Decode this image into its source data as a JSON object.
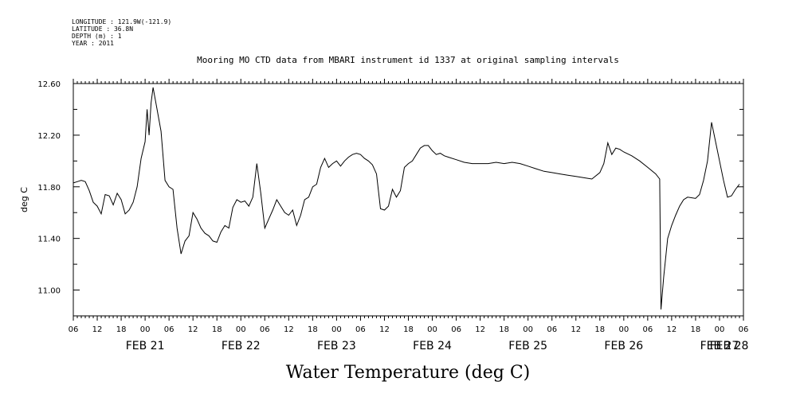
{
  "meta_lines": [
    "LONGITUDE : 121.9W(-121.9)",
    "LATITUDE : 36.8N",
    "DEPTH (m) : 1",
    "YEAR : 2011"
  ],
  "chart_data": {
    "type": "line",
    "title": "Mooring MO CTD data from MBARI instrument id 1337 at original sampling intervals",
    "xlabel": "Water Temperature (deg C)",
    "ylabel": "deg C",
    "xlim": [
      "2011-02-21T06:00",
      "2011-02-28T06:00"
    ],
    "ylim": [
      10.8,
      12.6
    ],
    "yticks": [
      11.0,
      11.4,
      11.8,
      12.2,
      12.6
    ],
    "ytick_labels": [
      "11.00",
      "11.40",
      "11.80",
      "12.20",
      "12.60"
    ],
    "hour_labels": [
      "06",
      "12",
      "18",
      "00",
      "06",
      "12",
      "18",
      "00",
      "06",
      "12",
      "18",
      "00",
      "06",
      "12",
      "18",
      "00",
      "06",
      "12",
      "18",
      "00",
      "06",
      "12",
      "18",
      "00",
      "06",
      "12",
      "18",
      "00",
      "06"
    ],
    "day_labels": [
      "FEB 21",
      "FEB 22",
      "FEB 23",
      "FEB 24",
      "FEB 25",
      "FEB 26",
      "FEB 27",
      "FEB 28"
    ],
    "grid": false,
    "series": [
      {
        "points": [
          [
            "2011-02-21T06:00",
            11.83
          ],
          [
            "2011-02-21T07:00",
            11.84
          ],
          [
            "2011-02-21T08:00",
            11.85
          ],
          [
            "2011-02-21T09:00",
            11.84
          ],
          [
            "2011-02-21T10:00",
            11.77
          ],
          [
            "2011-02-21T11:00",
            11.68
          ],
          [
            "2011-02-21T12:00",
            11.65
          ],
          [
            "2011-02-21T13:00",
            11.59
          ],
          [
            "2011-02-21T14:00",
            11.74
          ],
          [
            "2011-02-21T15:00",
            11.73
          ],
          [
            "2011-02-21T16:00",
            11.66
          ],
          [
            "2011-02-21T17:00",
            11.75
          ],
          [
            "2011-02-21T18:00",
            11.7
          ],
          [
            "2011-02-21T19:00",
            11.59
          ],
          [
            "2011-02-21T20:00",
            11.62
          ],
          [
            "2011-02-21T21:00",
            11.68
          ],
          [
            "2011-02-21T22:00",
            11.8
          ],
          [
            "2011-02-21T23:00",
            12.02
          ],
          [
            "2011-02-22T00:00",
            12.15
          ],
          [
            "2011-02-22T00:30",
            12.4
          ],
          [
            "2011-02-22T01:00",
            12.2
          ],
          [
            "2011-02-22T01:30",
            12.45
          ],
          [
            "2011-02-22T02:00",
            12.57
          ],
          [
            "2011-02-22T03:00",
            12.4
          ],
          [
            "2011-02-22T04:00",
            12.23
          ],
          [
            "2011-02-22T05:00",
            11.85
          ],
          [
            "2011-02-22T06:00",
            11.8
          ],
          [
            "2011-02-22T07:00",
            11.78
          ],
          [
            "2011-02-22T08:00",
            11.48
          ],
          [
            "2011-02-22T09:00",
            11.28
          ],
          [
            "2011-02-22T10:00",
            11.38
          ],
          [
            "2011-02-22T11:00",
            11.42
          ],
          [
            "2011-02-22T12:00",
            11.6
          ],
          [
            "2011-02-22T13:00",
            11.55
          ],
          [
            "2011-02-22T14:00",
            11.48
          ],
          [
            "2011-02-22T15:00",
            11.44
          ],
          [
            "2011-02-22T16:00",
            11.42
          ],
          [
            "2011-02-22T17:00",
            11.38
          ],
          [
            "2011-02-22T18:00",
            11.37
          ],
          [
            "2011-02-22T19:00",
            11.45
          ],
          [
            "2011-02-22T20:00",
            11.5
          ],
          [
            "2011-02-22T21:00",
            11.48
          ],
          [
            "2011-02-22T22:00",
            11.64
          ],
          [
            "2011-02-22T23:00",
            11.7
          ],
          [
            "2011-02-23T00:00",
            11.68
          ],
          [
            "2011-02-23T01:00",
            11.69
          ],
          [
            "2011-02-23T02:00",
            11.65
          ],
          [
            "2011-02-23T03:00",
            11.72
          ],
          [
            "2011-02-23T04:00",
            11.98
          ],
          [
            "2011-02-23T05:00",
            11.75
          ],
          [
            "2011-02-23T06:00",
            11.48
          ],
          [
            "2011-02-23T07:00",
            11.55
          ],
          [
            "2011-02-23T08:00",
            11.62
          ],
          [
            "2011-02-23T09:00",
            11.7
          ],
          [
            "2011-02-23T10:00",
            11.65
          ],
          [
            "2011-02-23T11:00",
            11.6
          ],
          [
            "2011-02-23T12:00",
            11.58
          ],
          [
            "2011-02-23T13:00",
            11.62
          ],
          [
            "2011-02-23T14:00",
            11.5
          ],
          [
            "2011-02-23T15:00",
            11.58
          ],
          [
            "2011-02-23T16:00",
            11.7
          ],
          [
            "2011-02-23T17:00",
            11.72
          ],
          [
            "2011-02-23T18:00",
            11.8
          ],
          [
            "2011-02-23T19:00",
            11.82
          ],
          [
            "2011-02-23T20:00",
            11.95
          ],
          [
            "2011-02-23T21:00",
            12.02
          ],
          [
            "2011-02-23T22:00",
            11.95
          ],
          [
            "2011-02-23T23:00",
            11.98
          ],
          [
            "2011-02-24T00:00",
            12.0
          ],
          [
            "2011-02-24T01:00",
            11.96
          ],
          [
            "2011-02-24T02:00",
            12.0
          ],
          [
            "2011-02-24T03:00",
            12.03
          ],
          [
            "2011-02-24T04:00",
            12.05
          ],
          [
            "2011-02-24T05:00",
            12.06
          ],
          [
            "2011-02-24T06:00",
            12.05
          ],
          [
            "2011-02-24T07:00",
            12.02
          ],
          [
            "2011-02-24T08:00",
            12.0
          ],
          [
            "2011-02-24T09:00",
            11.97
          ],
          [
            "2011-02-24T10:00",
            11.9
          ],
          [
            "2011-02-24T11:00",
            11.63
          ],
          [
            "2011-02-24T12:00",
            11.62
          ],
          [
            "2011-02-24T13:00",
            11.65
          ],
          [
            "2011-02-24T14:00",
            11.78
          ],
          [
            "2011-02-24T15:00",
            11.72
          ],
          [
            "2011-02-24T16:00",
            11.77
          ],
          [
            "2011-02-24T17:00",
            11.95
          ],
          [
            "2011-02-24T18:00",
            11.98
          ],
          [
            "2011-02-24T19:00",
            12.0
          ],
          [
            "2011-02-24T20:00",
            12.05
          ],
          [
            "2011-02-24T21:00",
            12.1
          ],
          [
            "2011-02-24T22:00",
            12.12
          ],
          [
            "2011-02-24T23:00",
            12.12
          ],
          [
            "2011-02-25T00:00",
            12.08
          ],
          [
            "2011-02-25T01:00",
            12.05
          ],
          [
            "2011-02-25T02:00",
            12.06
          ],
          [
            "2011-02-25T03:00",
            12.04
          ],
          [
            "2011-02-25T04:00",
            12.03
          ],
          [
            "2011-02-25T06:00",
            12.01
          ],
          [
            "2011-02-25T08:00",
            11.99
          ],
          [
            "2011-02-25T10:00",
            11.98
          ],
          [
            "2011-02-25T12:00",
            11.98
          ],
          [
            "2011-02-25T14:00",
            11.98
          ],
          [
            "2011-02-25T16:00",
            11.99
          ],
          [
            "2011-02-25T18:00",
            11.98
          ],
          [
            "2011-02-25T20:00",
            11.99
          ],
          [
            "2011-02-25T22:00",
            11.98
          ],
          [
            "2011-02-26T00:00",
            11.96
          ],
          [
            "2011-02-26T02:00",
            11.94
          ],
          [
            "2011-02-26T04:00",
            11.92
          ],
          [
            "2011-02-26T06:00",
            11.91
          ],
          [
            "2011-02-26T08:00",
            11.9
          ],
          [
            "2011-02-26T10:00",
            11.89
          ],
          [
            "2011-02-26T12:00",
            11.88
          ],
          [
            "2011-02-26T14:00",
            11.87
          ],
          [
            "2011-02-26T16:00",
            11.86
          ],
          [
            "2011-02-26T18:00",
            11.91
          ],
          [
            "2011-02-26T19:00",
            11.98
          ],
          [
            "2011-02-26T20:00",
            12.14
          ],
          [
            "2011-02-26T21:00",
            12.05
          ],
          [
            "2011-02-26T22:00",
            12.1
          ],
          [
            "2011-02-26T23:00",
            12.09
          ],
          [
            "2011-02-27T00:00",
            12.07
          ],
          [
            "2011-02-27T02:00",
            12.04
          ],
          [
            "2011-02-27T04:00",
            12.0
          ],
          [
            "2011-02-27T06:00",
            11.95
          ],
          [
            "2011-02-27T08:00",
            11.9
          ],
          [
            "2011-02-27T09:00",
            11.86
          ],
          [
            "2011-02-27T09:20",
            10.85
          ],
          [
            "2011-02-27T10:00",
            11.1
          ],
          [
            "2011-02-27T11:00",
            11.4
          ],
          [
            "2011-02-27T12:00",
            11.5
          ],
          [
            "2011-02-27T13:00",
            11.58
          ],
          [
            "2011-02-27T14:00",
            11.65
          ],
          [
            "2011-02-27T15:00",
            11.7
          ],
          [
            "2011-02-27T16:00",
            11.72
          ],
          [
            "2011-02-27T18:00",
            11.71
          ],
          [
            "2011-02-27T19:00",
            11.74
          ],
          [
            "2011-02-27T20:00",
            11.85
          ],
          [
            "2011-02-27T21:00",
            12.0
          ],
          [
            "2011-02-27T22:00",
            12.3
          ],
          [
            "2011-02-27T23:00",
            12.15
          ],
          [
            "2011-02-28T00:00",
            12.0
          ],
          [
            "2011-02-28T01:00",
            11.85
          ],
          [
            "2011-02-28T02:00",
            11.72
          ],
          [
            "2011-02-28T03:00",
            11.73
          ],
          [
            "2011-02-28T04:00",
            11.78
          ],
          [
            "2011-02-28T05:00",
            11.82
          ]
        ]
      }
    ]
  }
}
